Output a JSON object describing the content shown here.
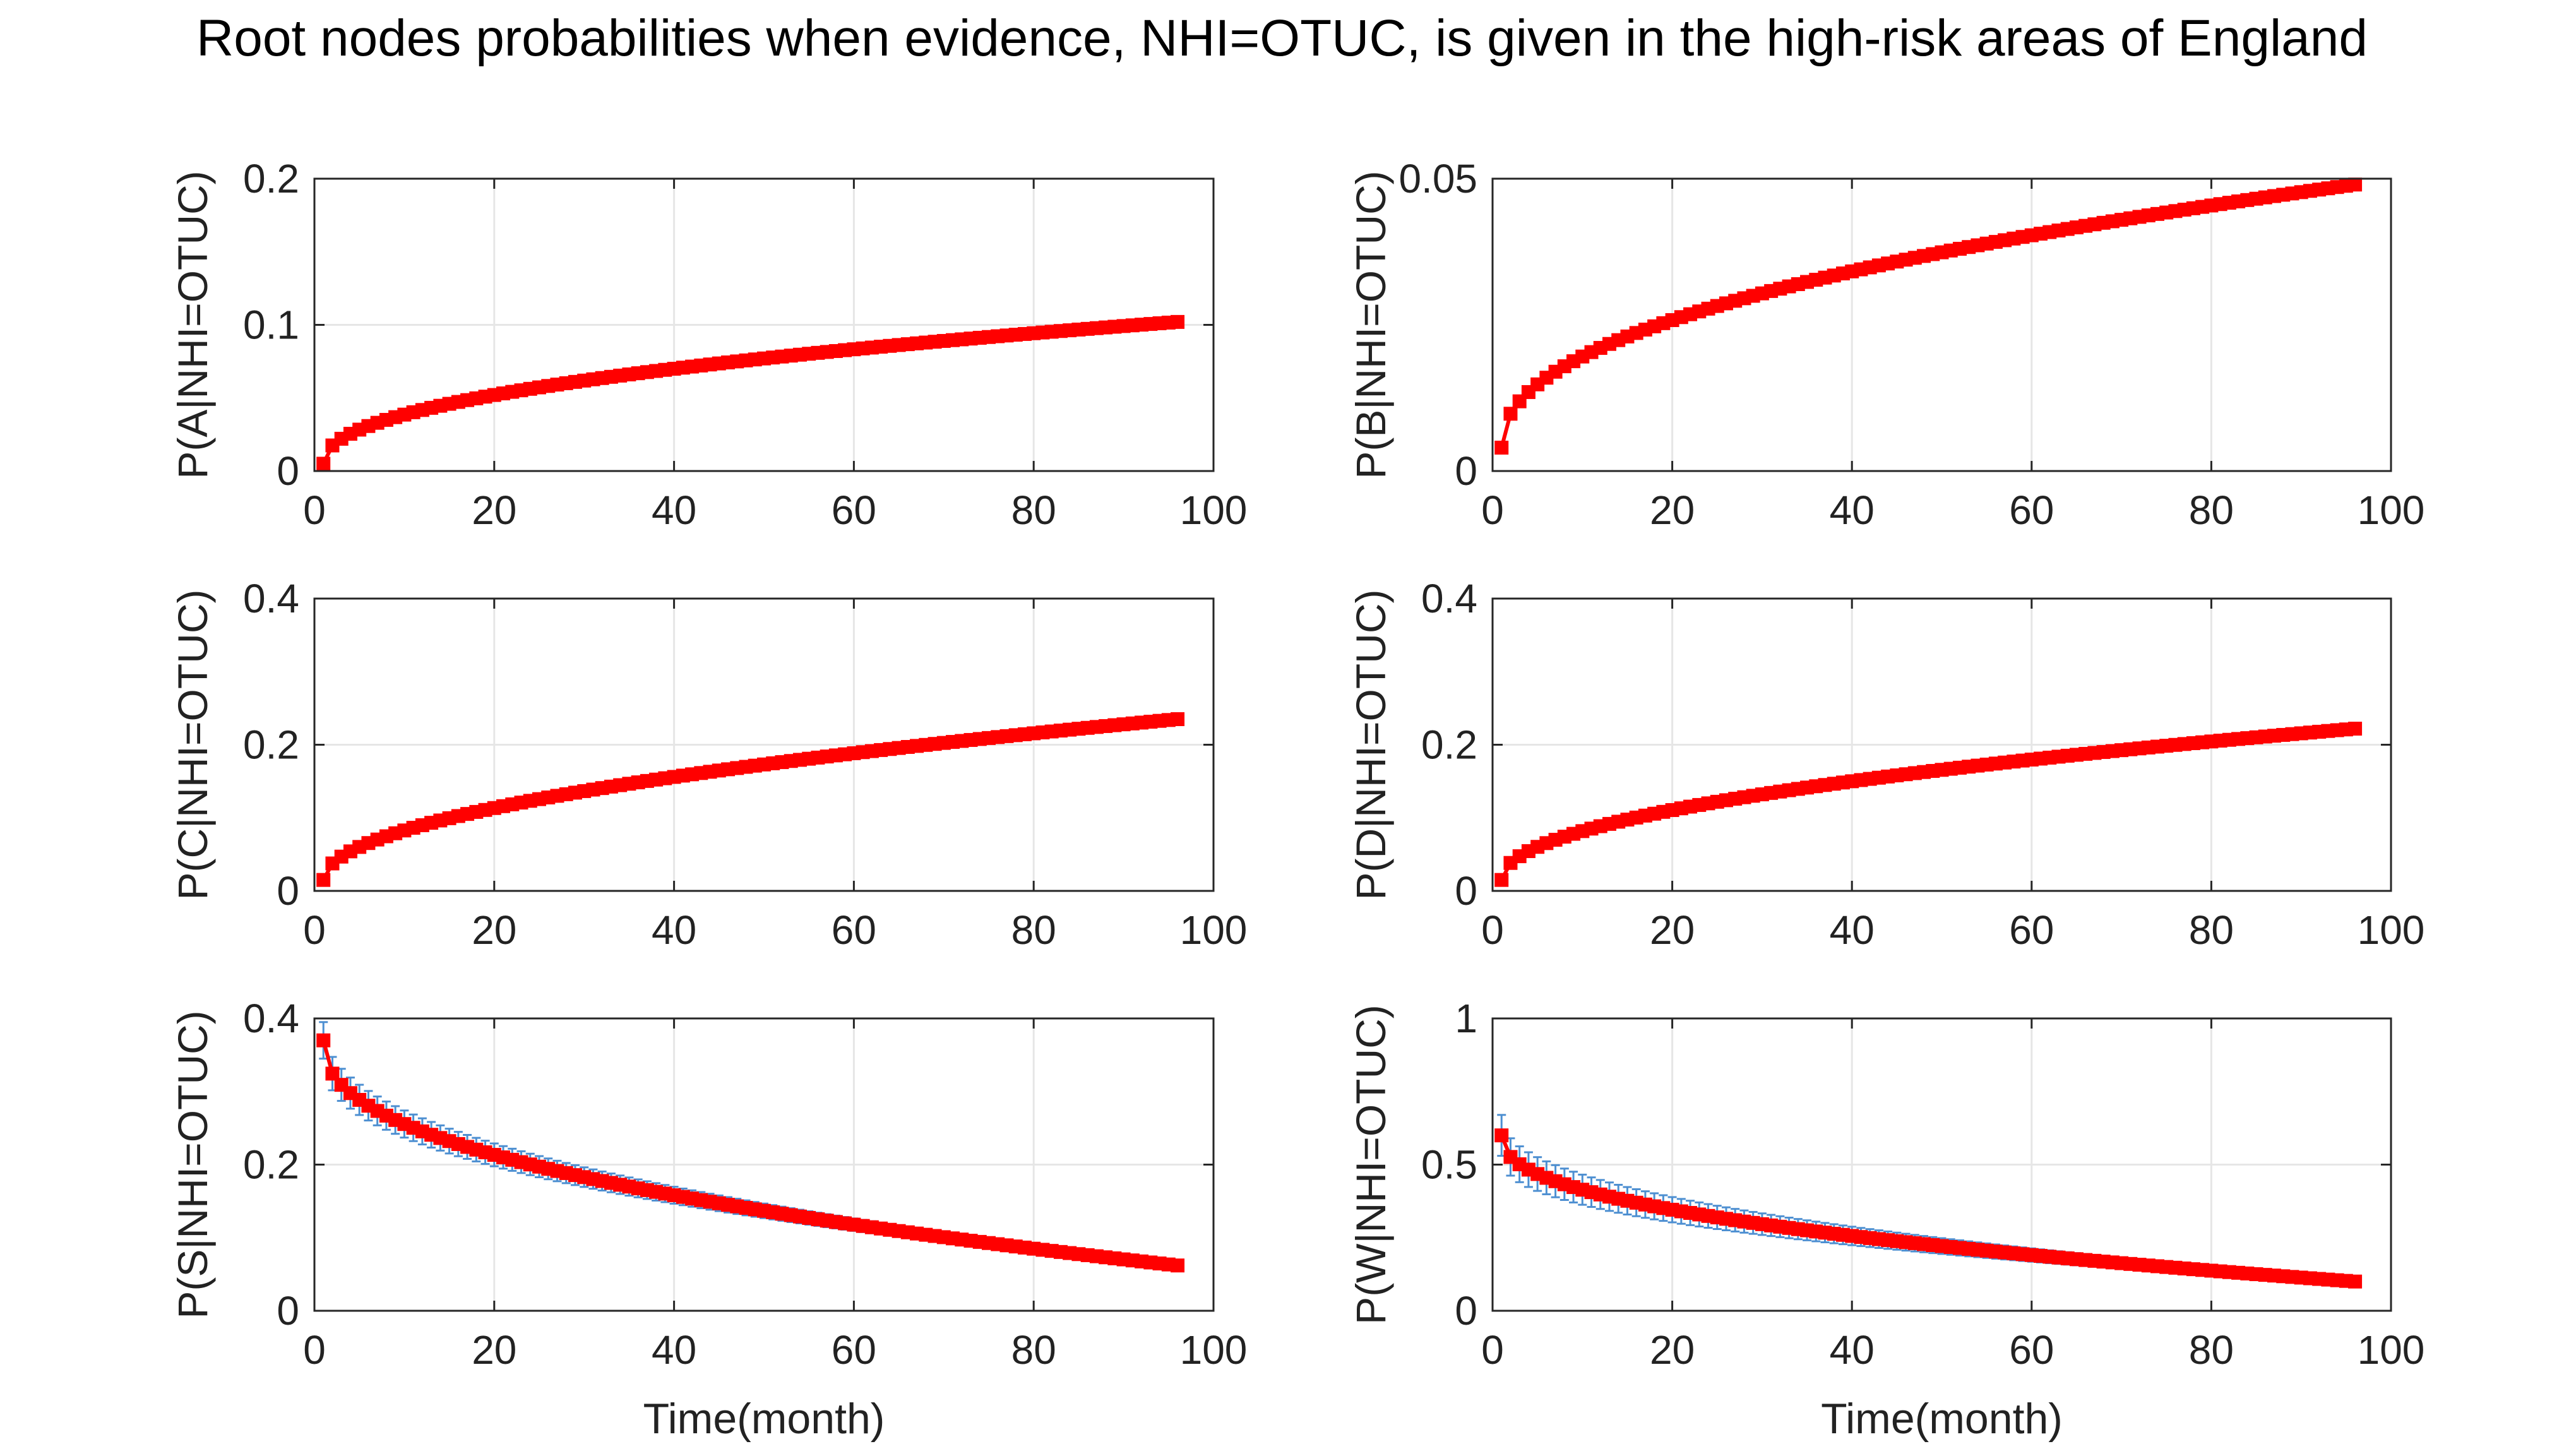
{
  "title": "Root nodes probabilities when evidence, NHI=OTUC, is given in the high-risk areas of England",
  "colors": {
    "marker": "#ff0000",
    "errorbar": "#4d8fd1",
    "grid": "#e6e6e6",
    "axis": "#262626"
  },
  "chart_data": [
    {
      "type": "line",
      "ylabel": "P(A|NHI=OTUC)",
      "xlabel": "",
      "xlim": [
        0,
        100
      ],
      "ylim": [
        0,
        0.2
      ],
      "xticks": [
        0,
        20,
        40,
        60,
        80,
        100
      ],
      "xtick_labels": [
        "0",
        "20",
        "40",
        "60",
        "80",
        "100"
      ],
      "yticks": [
        0,
        0.1,
        0.2
      ],
      "ytick_labels": [
        "0",
        "0.1",
        "0.2"
      ],
      "series": [
        {
          "name": "P(A|NHI=OTUC)",
          "start": 0.005,
          "end": 0.102,
          "exponent": 0.45,
          "err_start": 0.002,
          "err_end": 0.002
        }
      ]
    },
    {
      "type": "line",
      "ylabel": "P(B|NHI=OTUC)",
      "xlabel": "",
      "xlim": [
        0,
        100
      ],
      "ylim": [
        0,
        0.05
      ],
      "xticks": [
        0,
        20,
        40,
        60,
        80,
        100
      ],
      "xtick_labels": [
        "0",
        "20",
        "40",
        "60",
        "80",
        "100"
      ],
      "yticks": [
        0,
        0.05
      ],
      "ytick_labels": [
        "0",
        "0.05"
      ],
      "series": [
        {
          "name": "P(B|NHI=OTUC)",
          "start": 0.004,
          "end": 0.049,
          "exponent": 0.45,
          "err_start": 0.0005,
          "err_end": 0.0005
        }
      ]
    },
    {
      "type": "line",
      "ylabel": "P(C|NHI=OTUC)",
      "xlabel": "",
      "xlim": [
        0,
        100
      ],
      "ylim": [
        0,
        0.4
      ],
      "xticks": [
        0,
        20,
        40,
        60,
        80,
        100
      ],
      "xtick_labels": [
        "0",
        "20",
        "40",
        "60",
        "80",
        "100"
      ],
      "yticks": [
        0,
        0.2,
        0.4
      ],
      "ytick_labels": [
        "0",
        "0.2",
        "0.4"
      ],
      "series": [
        {
          "name": "P(C|NHI=OTUC)",
          "start": 0.015,
          "end": 0.235,
          "exponent": 0.5,
          "err_start": 0.004,
          "err_end": 0.008
        }
      ]
    },
    {
      "type": "line",
      "ylabel": "P(D|NHI=OTUC)",
      "xlabel": "",
      "xlim": [
        0,
        100
      ],
      "ylim": [
        0,
        0.4
      ],
      "xticks": [
        0,
        20,
        40,
        60,
        80,
        100
      ],
      "xtick_labels": [
        "0",
        "20",
        "40",
        "60",
        "80",
        "100"
      ],
      "yticks": [
        0,
        0.2,
        0.4
      ],
      "ytick_labels": [
        "0",
        "0.2",
        "0.4"
      ],
      "series": [
        {
          "name": "P(D|NHI=OTUC)",
          "start": 0.015,
          "end": 0.222,
          "exponent": 0.48,
          "err_start": 0.004,
          "err_end": 0.008
        }
      ]
    },
    {
      "type": "line",
      "ylabel": "P(S|NHI=OTUC)",
      "xlabel": "Time(month)",
      "xlim": [
        0,
        100
      ],
      "ylim": [
        0,
        0.4
      ],
      "xticks": [
        0,
        20,
        40,
        60,
        80,
        100
      ],
      "xtick_labels": [
        "0",
        "20",
        "40",
        "60",
        "80",
        "100"
      ],
      "yticks": [
        0,
        0.2,
        0.4
      ],
      "ytick_labels": [
        "0",
        "0.2",
        "0.4"
      ],
      "series": [
        {
          "name": "P(S|NHI=OTUC)",
          "start": 0.37,
          "end": 0.062,
          "exponent": 0.42,
          "err_start": 0.025,
          "err_end": 0.004
        }
      ]
    },
    {
      "type": "line",
      "ylabel": "P(W|NHI=OTUC)",
      "xlabel": "Time(month)",
      "xlim": [
        0,
        100
      ],
      "ylim": [
        0,
        1
      ],
      "xticks": [
        0,
        20,
        40,
        60,
        80,
        100
      ],
      "xtick_labels": [
        "0",
        "20",
        "40",
        "60",
        "80",
        "100"
      ],
      "yticks": [
        0,
        0.5,
        1
      ],
      "ytick_labels": [
        "0",
        "0.5",
        "1"
      ],
      "series": [
        {
          "name": "P(W|NHI=OTUC)",
          "start": 0.6,
          "end": 0.1,
          "exponent": 0.42,
          "err_start": 0.07,
          "err_end": 0.01
        }
      ]
    }
  ]
}
